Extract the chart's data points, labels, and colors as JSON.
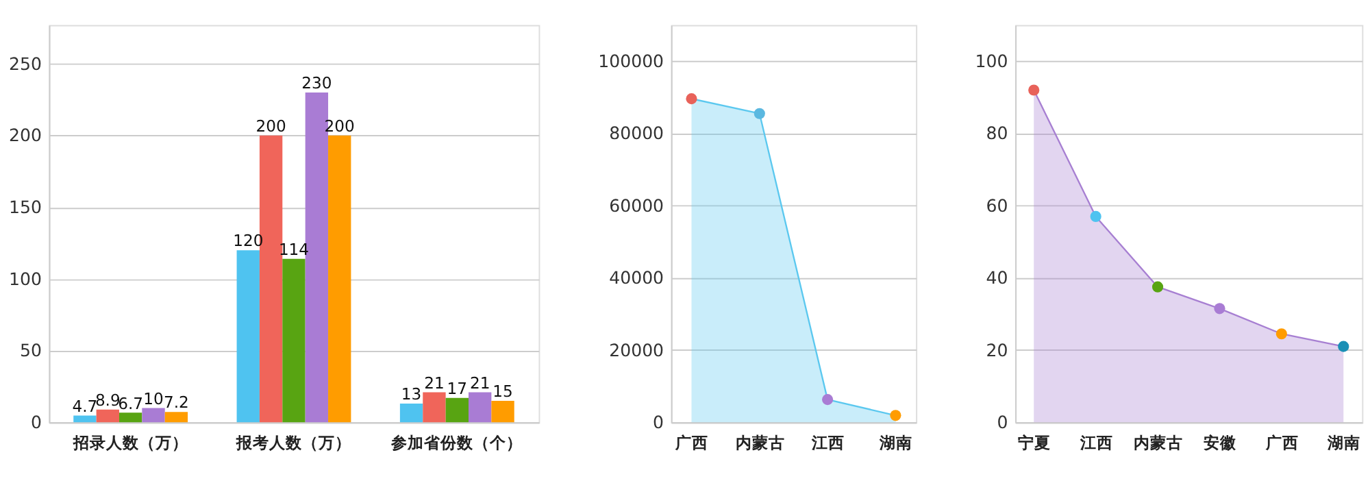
{
  "chart_data": [
    {
      "type": "bar",
      "categories": [
        "招录人数（万）",
        "报考人数（万）",
        "参加省份数（个）"
      ],
      "ylim": [
        0,
        277
      ],
      "yticks": [
        0,
        50,
        100,
        150,
        200,
        250
      ],
      "grid": "y",
      "data_labels": true,
      "legend": false,
      "series": [
        {
          "color": "#4fc3f0",
          "values": [
            4.7,
            120,
            13
          ]
        },
        {
          "color": "#f0655a",
          "values": [
            8.9,
            200,
            21
          ]
        },
        {
          "color": "#58a412",
          "values": [
            6.7,
            114,
            17
          ]
        },
        {
          "color": "#a97cd4",
          "values": [
            10,
            230,
            21
          ]
        },
        {
          "color": "#ff9c00",
          "values": [
            7.2,
            200,
            15
          ]
        }
      ]
    },
    {
      "type": "area",
      "categories": [
        "广西",
        "内蒙古",
        "江西",
        "湖南"
      ],
      "ylim": [
        0,
        110000
      ],
      "yticks": [
        0,
        20000,
        40000,
        60000,
        80000,
        100000
      ],
      "grid": "y",
      "marker": "circle",
      "series": [
        {
          "color": "#5bc8ef",
          "colors": [
            "#e8625a",
            "#5bb8e0",
            "#a97cd4",
            "#ff9c00"
          ],
          "values": [
            89600,
            85500,
            6300,
            1900
          ]
        }
      ]
    },
    {
      "type": "area",
      "categories": [
        "宁夏",
        "江西",
        "内蒙古",
        "安徽",
        "广西",
        "湖南"
      ],
      "ylim": [
        0,
        110
      ],
      "yticks": [
        0,
        20,
        40,
        60,
        80,
        100
      ],
      "grid": "y",
      "marker": "circle",
      "series": [
        {
          "color": "#a77fd2",
          "colors": [
            "#e8625a",
            "#4fc3f0",
            "#58a412",
            "#a97cd4",
            "#ff9c00",
            "#1a8fb5"
          ],
          "values": [
            92,
            57,
            37.5,
            31.5,
            24.5,
            21
          ]
        }
      ]
    }
  ]
}
